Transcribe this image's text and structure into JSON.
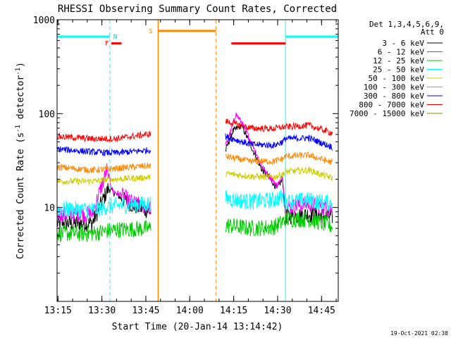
{
  "chart_data": {
    "type": "line",
    "title": "RHESSI Observing Summary Count Rates, Corrected",
    "xlabel": "Start Time (20-Jan-14 13:14:42)",
    "ylabel": "Corrected Count Rate (s",
    "ylabel_sup1": "-1",
    "ylabel_mid": " detector",
    "ylabel_sup2": "-1",
    "ylabel_end": ")",
    "yscale": "log",
    "ylim": [
      1,
      1000
    ],
    "xlim_minutes": [
      0,
      96
    ],
    "x_ticks": [
      "13:15",
      "13:30",
      "13:45",
      "14:00",
      "14:15",
      "14:30",
      "14:45"
    ],
    "y_ticks": [
      "10",
      "100",
      "1000"
    ],
    "legend_header": [
      "Det 1,3,4,5,6,9,",
      "Att 0"
    ],
    "legend_position": "right",
    "series": [
      {
        "name": "3 - 6 keV",
        "color": "#000000",
        "points": [
          [
            0,
            6.8
          ],
          [
            12,
            6.8
          ],
          [
            17.5,
            16
          ],
          [
            22,
            12.5
          ],
          [
            26,
            10.5
          ],
          [
            32,
            9
          ],
          [
            32.5,
            null
          ],
          [
            57,
            null
          ],
          [
            57.5,
            40
          ],
          [
            60,
            65
          ],
          [
            63,
            75
          ],
          [
            67,
            40
          ],
          [
            70,
            25
          ],
          [
            74,
            18
          ],
          [
            75,
            16
          ],
          [
            77,
            20
          ],
          [
            78,
            8
          ],
          [
            86,
            8.5
          ],
          [
            94,
            8
          ]
        ]
      },
      {
        "name": "6 - 12 keV",
        "color": "#ff00ff",
        "points": [
          [
            0,
            8.5
          ],
          [
            12,
            8.5
          ],
          [
            17,
            25
          ],
          [
            19,
            15
          ],
          [
            22,
            13.5
          ],
          [
            26,
            11
          ],
          [
            32,
            10
          ],
          [
            32.5,
            null
          ],
          [
            57,
            null
          ],
          [
            57.5,
            45
          ],
          [
            60,
            75
          ],
          [
            61,
            100
          ],
          [
            63,
            80
          ],
          [
            67,
            45
          ],
          [
            70,
            27
          ],
          [
            74,
            19
          ],
          [
            75,
            17
          ],
          [
            77,
            21
          ],
          [
            78,
            10
          ],
          [
            86,
            11
          ],
          [
            94,
            9.5
          ]
        ]
      },
      {
        "name": "12 - 25 keV",
        "color": "#00cc00",
        "points": [
          [
            0,
            5.3
          ],
          [
            12,
            5.3
          ],
          [
            20,
            5.8
          ],
          [
            32,
            6
          ],
          [
            32.5,
            null
          ],
          [
            57,
            null
          ],
          [
            57.5,
            6.5
          ],
          [
            66,
            6
          ],
          [
            74,
            6.2
          ],
          [
            77,
            7
          ],
          [
            78,
            7.5
          ],
          [
            86,
            7.5
          ],
          [
            94,
            6.3
          ]
        ]
      },
      {
        "name": "25 - 50 keV",
        "color": "#00ffff",
        "points": [
          [
            0,
            9.5
          ],
          [
            12,
            9.5
          ],
          [
            20,
            10.5
          ],
          [
            32,
            11
          ],
          [
            32.5,
            null
          ],
          [
            57,
            null
          ],
          [
            57.5,
            12.5
          ],
          [
            66,
            11.5
          ],
          [
            74,
            12
          ],
          [
            77,
            13
          ],
          [
            78,
            11.5
          ],
          [
            86,
            12
          ],
          [
            94,
            11
          ]
        ]
      },
      {
        "name": "50 - 100 keV",
        "color": "#cccc00",
        "points": [
          [
            0,
            19
          ],
          [
            12,
            19
          ],
          [
            20,
            20
          ],
          [
            32,
            21
          ],
          [
            32.5,
            null
          ],
          [
            57,
            null
          ],
          [
            57.5,
            23
          ],
          [
            66,
            21.5
          ],
          [
            74,
            21
          ],
          [
            77,
            22.5
          ],
          [
            78,
            24
          ],
          [
            86,
            25
          ],
          [
            94,
            20.5
          ]
        ]
      },
      {
        "name": "100 - 300 keV",
        "color": "#ff8800",
        "points": [
          [
            0,
            27
          ],
          [
            12,
            25
          ],
          [
            20,
            26
          ],
          [
            32,
            28
          ],
          [
            32.5,
            null
          ],
          [
            57,
            null
          ],
          [
            57.5,
            35
          ],
          [
            66,
            31
          ],
          [
            74,
            31
          ],
          [
            77,
            33
          ],
          [
            78,
            35
          ],
          [
            86,
            36
          ],
          [
            94,
            30
          ]
        ]
      },
      {
        "name": "300 - 800 keV",
        "color": "#0000ff",
        "points": [
          [
            0,
            42
          ],
          [
            12,
            39
          ],
          [
            20,
            38
          ],
          [
            32,
            41
          ],
          [
            32.5,
            null
          ],
          [
            57,
            null
          ],
          [
            57.5,
            57
          ],
          [
            66,
            47
          ],
          [
            74,
            46
          ],
          [
            77,
            50
          ],
          [
            78,
            54
          ],
          [
            86,
            55
          ],
          [
            94,
            44
          ]
        ]
      },
      {
        "name": "800 - 7000 keV",
        "color": "#ff0000",
        "points": [
          [
            0,
            57
          ],
          [
            12,
            54
          ],
          [
            20,
            54
          ],
          [
            32,
            61
          ],
          [
            32.5,
            null
          ],
          [
            57,
            null
          ],
          [
            57.5,
            83
          ],
          [
            66,
            70
          ],
          [
            74,
            69
          ],
          [
            77,
            72
          ],
          [
            78,
            72
          ],
          [
            86,
            75
          ],
          [
            94,
            62
          ]
        ]
      },
      {
        "name": "7000 - 15000 keV",
        "color": "#888800",
        "points": []
      }
    ],
    "annotations": {
      "attenuator_bar": {
        "color": "#00ffff",
        "segments": [
          [
            0,
            18
          ],
          [
            78,
            96
          ]
        ],
        "level": 660
      },
      "night_label": "N",
      "saa_label": "S",
      "flare_label": "F",
      "flare_bars": {
        "color": "#ff0000",
        "segments": [
          [
            18.5,
            22
          ],
          [
            59.5,
            78
          ]
        ],
        "level": 560
      },
      "saa_bar": {
        "color": "#ff8800",
        "segment": [
          34.5,
          54.3
        ],
        "level": 760
      },
      "cyan_dashed": [
        18,
        96
      ],
      "cyan_solid": [
        0,
        78
      ],
      "orange_solid": [
        34.5
      ],
      "orange_dashed": [
        54.3
      ]
    }
  },
  "footer": {
    "timestamp": "19-Oct-2021 02:38"
  }
}
